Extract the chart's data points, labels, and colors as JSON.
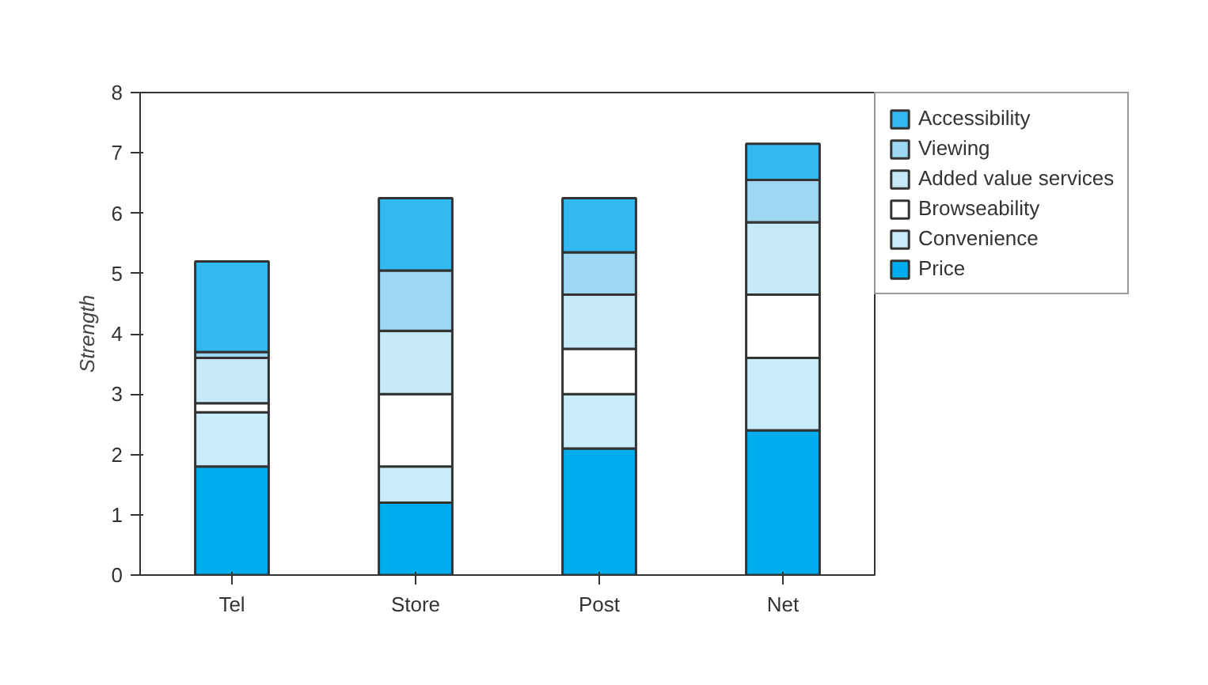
{
  "chart_data": {
    "type": "bar",
    "stacked": true,
    "ylabel": "Strength",
    "categories": [
      "Tel",
      "Store",
      "Post",
      "Net"
    ],
    "series": [
      {
        "name": "Price",
        "color": "#00aeef",
        "values": [
          1.8,
          1.2,
          2.1,
          2.4
        ]
      },
      {
        "name": "Convenience",
        "color": "#c9ecf9",
        "values": [
          0.9,
          0.6,
          0.9,
          1.2
        ]
      },
      {
        "name": "Browseability",
        "color": "#ffffff",
        "values": [
          0.15,
          1.2,
          0.75,
          1.05
        ]
      },
      {
        "name": "Added value services",
        "color": "#c6e9f8",
        "values": [
          0.75,
          1.05,
          0.9,
          1.2
        ]
      },
      {
        "name": "Viewing",
        "color": "#9dd7f2",
        "values": [
          0.1,
          1.0,
          0.7,
          0.7
        ]
      },
      {
        "name": "Accessibility",
        "color": "#33b8f0",
        "values": [
          1.5,
          1.2,
          0.9,
          0.6
        ]
      }
    ],
    "ylim": [
      0,
      8
    ],
    "yticks": [
      0,
      1,
      2,
      3,
      4,
      5,
      6,
      7,
      8
    ],
    "grid": false,
    "legend": "right"
  }
}
